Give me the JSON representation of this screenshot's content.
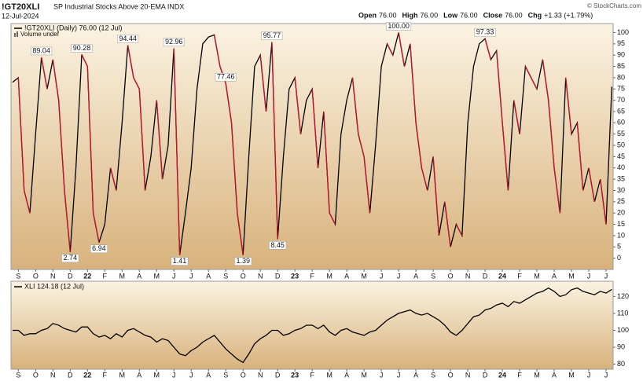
{
  "header": {
    "symbol": "!GT20XLI",
    "name": "SP Industrial Stocks Above 20-EMA INDX",
    "date": "12-Jul-2024",
    "copyright": "© StockCharts.com",
    "quote": [
      {
        "label": "Open",
        "value": "76.00"
      },
      {
        "label": "High",
        "value": "76.00"
      },
      {
        "label": "Low",
        "value": "76.00"
      },
      {
        "label": "Close",
        "value": "76.00"
      },
      {
        "label": "Chg",
        "value": "+1.33 (+1.79%)"
      }
    ]
  },
  "chart_data": [
    {
      "type": "line",
      "legend": "!GT20XLI (Daily) 76.00 (12 Jul)",
      "volume_legend": "Volume undef",
      "up_color": "#000000",
      "down_color": "#c8102e",
      "categories": [
        null,
        "S",
        null,
        null,
        "O",
        null,
        null,
        "N",
        null,
        null,
        "D",
        null,
        null,
        "22",
        null,
        null,
        "F",
        null,
        null,
        "M",
        null,
        null,
        "A",
        null,
        null,
        "M",
        null,
        null,
        "J",
        null,
        null,
        "J",
        null,
        null,
        "A",
        null,
        null,
        "S",
        null,
        null,
        "O",
        null,
        null,
        "N",
        null,
        null,
        "D",
        null,
        null,
        "23",
        null,
        null,
        "F",
        null,
        null,
        "M",
        null,
        null,
        "A",
        null,
        null,
        "M",
        null,
        null,
        "J",
        null,
        null,
        "J",
        null,
        null,
        "A",
        null,
        null,
        "S",
        null,
        null,
        "O",
        null,
        null,
        "N",
        null,
        null,
        "D",
        null,
        null,
        "24",
        null,
        null,
        "F",
        null,
        null,
        "M",
        null,
        null,
        "A",
        null,
        null,
        "M",
        null,
        null,
        "J",
        null,
        null,
        "J",
        null
      ],
      "values": [
        78,
        80,
        30,
        20,
        55,
        89.04,
        75,
        88,
        70,
        30,
        2.74,
        40,
        90.28,
        85,
        20,
        6.94,
        15,
        40,
        30,
        60,
        94.44,
        80,
        75,
        30,
        45,
        70,
        35,
        50,
        92.96,
        1.41,
        20,
        40,
        75,
        95,
        98,
        99,
        85,
        77.46,
        60,
        20,
        1.39,
        45,
        85,
        90,
        65,
        95.77,
        8.45,
        45,
        75,
        80,
        55,
        70,
        75,
        40,
        65,
        20,
        15,
        55,
        70,
        80,
        55,
        45,
        20,
        50,
        85,
        95,
        90,
        100,
        85,
        95,
        60,
        40,
        30,
        45,
        10,
        25,
        5,
        15,
        10,
        60,
        85,
        95,
        97.33,
        88,
        92,
        60,
        30,
        70,
        55,
        85,
        80,
        75,
        88,
        70,
        40,
        20,
        80,
        55,
        60,
        30,
        40,
        25,
        35,
        15,
        76
      ],
      "value_labels": [
        null,
        null,
        null,
        null,
        null,
        "89.04",
        null,
        null,
        null,
        null,
        "2.74",
        null,
        "90.28",
        null,
        null,
        "6.94",
        null,
        null,
        null,
        null,
        "94.44",
        null,
        null,
        null,
        null,
        null,
        null,
        null,
        "92.96",
        "1.41",
        null,
        null,
        null,
        null,
        null,
        null,
        null,
        "77.46",
        null,
        null,
        "1.39",
        null,
        null,
        null,
        null,
        "95.77",
        "8.45",
        null,
        null,
        null,
        null,
        null,
        null,
        null,
        null,
        null,
        null,
        null,
        null,
        null,
        null,
        null,
        null,
        null,
        null,
        null,
        null,
        "100.00",
        null,
        null,
        null,
        null,
        null,
        null,
        null,
        null,
        null,
        null,
        null,
        null,
        null,
        null,
        "97.33",
        null,
        null,
        null,
        null,
        null,
        null,
        null,
        null,
        null,
        null,
        null,
        null,
        null,
        null,
        null,
        null,
        null,
        null,
        null,
        null,
        null,
        null
      ],
      "ylim": [
        -5,
        104
      ],
      "yticks": [
        0,
        5,
        10,
        15,
        20,
        25,
        30,
        35,
        40,
        45,
        50,
        55,
        60,
        65,
        70,
        75,
        80,
        85,
        90,
        95,
        100
      ]
    },
    {
      "type": "line",
      "legend": "XLI 124.18 (12 Jul)",
      "color": "#000000",
      "categories": [
        null,
        "S",
        null,
        null,
        "O",
        null,
        null,
        "N",
        null,
        null,
        "D",
        null,
        null,
        "22",
        null,
        null,
        "F",
        null,
        null,
        "M",
        null,
        null,
        "A",
        null,
        null,
        "M",
        null,
        null,
        "J",
        null,
        null,
        "J",
        null,
        null,
        "A",
        null,
        null,
        "S",
        null,
        null,
        "O",
        null,
        null,
        "N",
        null,
        null,
        "D",
        null,
        null,
        "23",
        null,
        null,
        "F",
        null,
        null,
        "M",
        null,
        null,
        "A",
        null,
        null,
        "M",
        null,
        null,
        "J",
        null,
        null,
        "J",
        null,
        null,
        "A",
        null,
        null,
        "S",
        null,
        null,
        "O",
        null,
        null,
        "N",
        null,
        null,
        "D",
        null,
        null,
        "24",
        null,
        null,
        "F",
        null,
        null,
        "M",
        null,
        null,
        "A",
        null,
        null,
        "M",
        null,
        null,
        "J",
        null,
        null,
        "J",
        null
      ],
      "values": [
        100,
        100,
        97,
        98,
        98,
        100,
        101,
        104,
        103,
        101,
        100,
        99,
        102,
        102,
        98,
        96,
        97,
        95,
        98,
        96,
        100,
        101,
        99,
        97,
        96,
        93,
        95,
        94,
        90,
        86,
        85,
        88,
        90,
        93,
        95,
        97,
        93,
        89,
        86,
        83,
        81,
        86,
        92,
        95,
        97,
        100,
        100,
        97,
        98,
        100,
        101,
        103,
        103,
        101,
        103,
        99,
        97,
        100,
        101,
        99,
        98,
        97,
        99,
        100,
        103,
        106,
        108,
        110,
        111,
        112,
        110,
        109,
        110,
        108,
        106,
        103,
        99,
        97,
        100,
        104,
        108,
        109,
        112,
        113,
        115,
        116,
        114,
        117,
        116,
        118,
        120,
        122,
        123,
        125,
        123,
        120,
        121,
        124,
        125,
        123,
        122,
        121,
        123,
        122,
        124.18
      ],
      "ylim": [
        77,
        129
      ],
      "yticks": [
        80,
        90,
        100,
        110,
        120
      ]
    }
  ]
}
